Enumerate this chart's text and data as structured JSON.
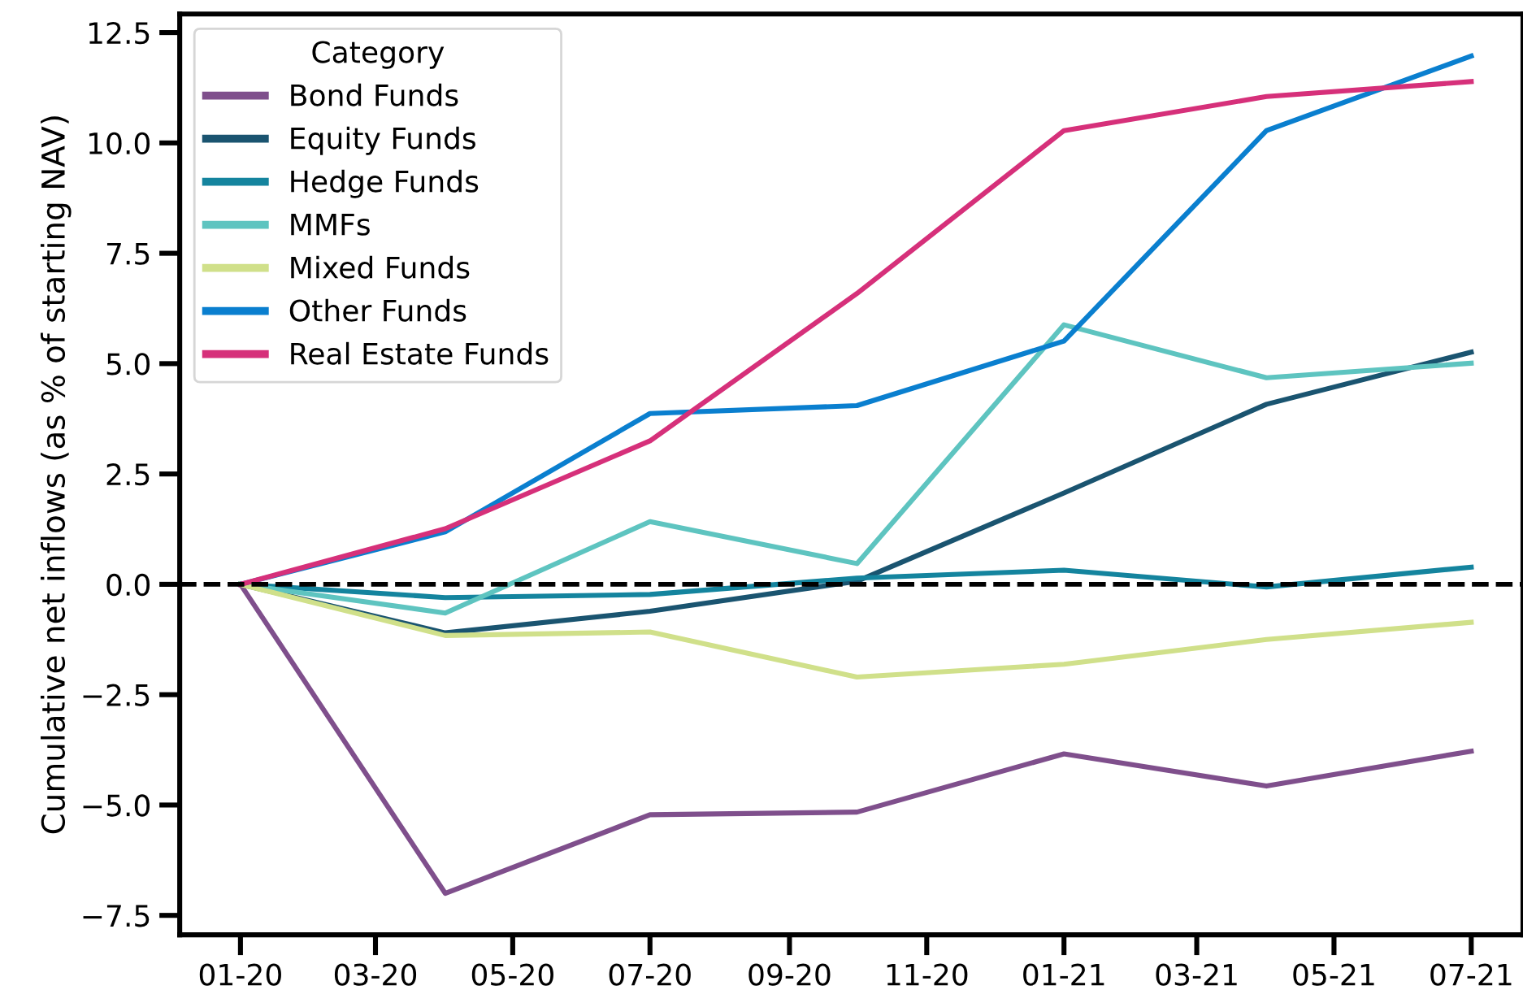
{
  "chart_data": {
    "type": "line",
    "ylabel": "Cumulative net inflows (as % of starting NAV)",
    "legend_title": "Category",
    "x": [
      "2020-01-01",
      "2020-04-01",
      "2020-07-01",
      "2020-10-01",
      "2021-01-01",
      "2021-04-01",
      "2021-07-01"
    ],
    "series": [
      {
        "name": "Bond Funds",
        "color": "#7f4f8c",
        "values": [
          0,
          -7.0,
          -5.22,
          -5.16,
          -3.84,
          -4.57,
          -3.78
        ]
      },
      {
        "name": "Equity Funds",
        "color": "#1a5470",
        "values": [
          0,
          -1.1,
          -0.61,
          0.07,
          2.07,
          4.08,
          5.26
        ]
      },
      {
        "name": "Hedge Funds",
        "color": "#14849e",
        "values": [
          0,
          -0.3,
          -0.23,
          0.14,
          0.32,
          -0.06,
          0.39
        ]
      },
      {
        "name": "MMFs",
        "color": "#5ec4c0",
        "values": [
          0,
          -0.65,
          1.42,
          0.47,
          5.88,
          4.68,
          5.01
        ]
      },
      {
        "name": "Mixed Funds",
        "color": "#d0e08a",
        "values": [
          0,
          -1.16,
          -1.08,
          -2.1,
          -1.81,
          -1.25,
          -0.86
        ]
      },
      {
        "name": "Other Funds",
        "color": "#0a7fcf",
        "values": [
          0,
          1.19,
          3.87,
          4.05,
          5.51,
          10.28,
          11.97
        ]
      },
      {
        "name": "Real Estate Funds",
        "color": "#d6307a",
        "values": [
          0,
          1.26,
          3.25,
          6.59,
          10.28,
          11.05,
          11.39
        ]
      }
    ],
    "xlim": [
      "2019-12-05",
      "2021-07-24"
    ],
    "xticks": [
      {
        "value": "2020-01-01",
        "label": "01-20"
      },
      {
        "value": "2020-03-01",
        "label": "03-20"
      },
      {
        "value": "2020-05-01",
        "label": "05-20"
      },
      {
        "value": "2020-07-01",
        "label": "07-20"
      },
      {
        "value": "2020-09-01",
        "label": "09-20"
      },
      {
        "value": "2020-11-01",
        "label": "11-20"
      },
      {
        "value": "2021-01-01",
        "label": "01-21"
      },
      {
        "value": "2021-03-01",
        "label": "03-21"
      },
      {
        "value": "2021-05-01",
        "label": "05-21"
      },
      {
        "value": "2021-07-01",
        "label": "07-21"
      }
    ],
    "ylim": [
      -7.94,
      12.92
    ],
    "yticks": [
      {
        "value": -7.5,
        "label": "−7.5"
      },
      {
        "value": -5,
        "label": "−5.0"
      },
      {
        "value": -2.5,
        "label": "−2.5"
      },
      {
        "value": 0,
        "label": "0.0"
      },
      {
        "value": 2.5,
        "label": "2.5"
      },
      {
        "value": 5,
        "label": "5.0"
      },
      {
        "value": 7.5,
        "label": "7.5"
      },
      {
        "value": 10,
        "label": "10.0"
      },
      {
        "value": 12.5,
        "label": "12.5"
      }
    ],
    "ref_lines": [
      {
        "axis": "y",
        "value": 0,
        "label": null,
        "color": "#000000",
        "line_style": "dashed"
      }
    ],
    "legend": "top left",
    "grid": false,
    "marker": "none",
    "line_style": "solid"
  }
}
